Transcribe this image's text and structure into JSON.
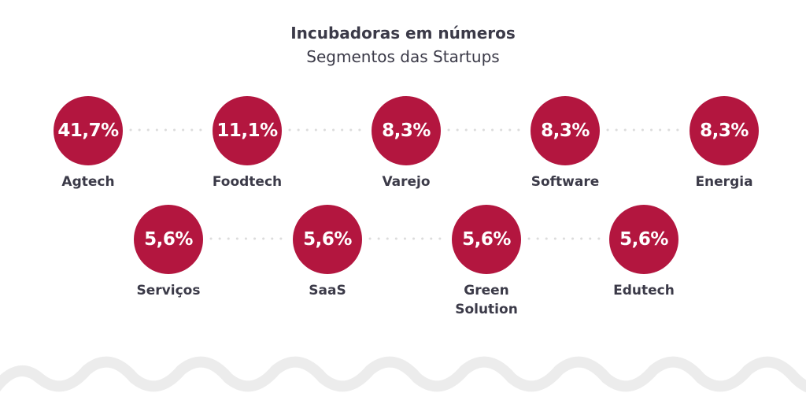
{
  "header": {
    "title": "Incubadoras em números",
    "subtitle": "Segmentos das Startups"
  },
  "rows": [
    [
      {
        "value": "41,7%",
        "label": "Agtech"
      },
      {
        "value": "11,1%",
        "label": "Foodtech"
      },
      {
        "value": "8,3%",
        "label": "Varejo"
      },
      {
        "value": "8,3%",
        "label": "Software"
      },
      {
        "value": "8,3%",
        "label": "Energia"
      }
    ],
    [
      {
        "value": "5,6%",
        "label": "Serviços"
      },
      {
        "value": "5,6%",
        "label": "SaaS"
      },
      {
        "value": "5,6%",
        "label": "Green Solution"
      },
      {
        "value": "5,6%",
        "label": "Edutech"
      }
    ]
  ]
}
